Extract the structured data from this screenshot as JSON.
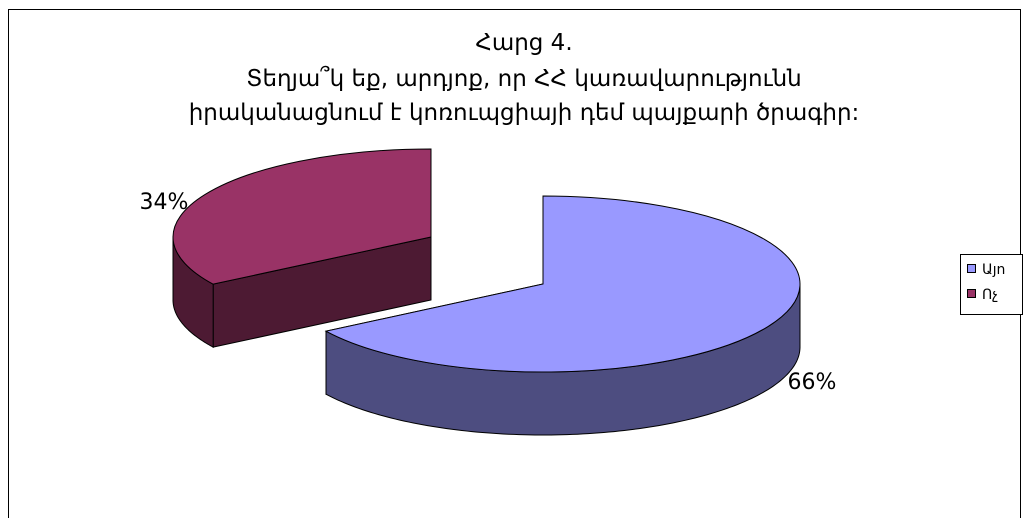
{
  "chart_data": {
    "type": "pie",
    "style": "3d-exploded",
    "title_lines": [
      "Հարց 4.",
      "Տեղյա՞կ եք, արդյոք, որ ՀՀ կառավարությունն",
      "իրականացնում է կոռուպցիայի դեմ պայքարի ծրագիր:"
    ],
    "slices": [
      {
        "name": "Այո",
        "value": 66,
        "label": "66%",
        "color": "#9999ff",
        "side_color": "#4d4d80"
      },
      {
        "name": "Ոչ",
        "value": 34,
        "label": "34%",
        "color": "#993366",
        "side_color": "#4d1a33"
      }
    ],
    "legend": {
      "placement": "right",
      "entries": [
        "Այո",
        "Ոչ"
      ]
    }
  }
}
